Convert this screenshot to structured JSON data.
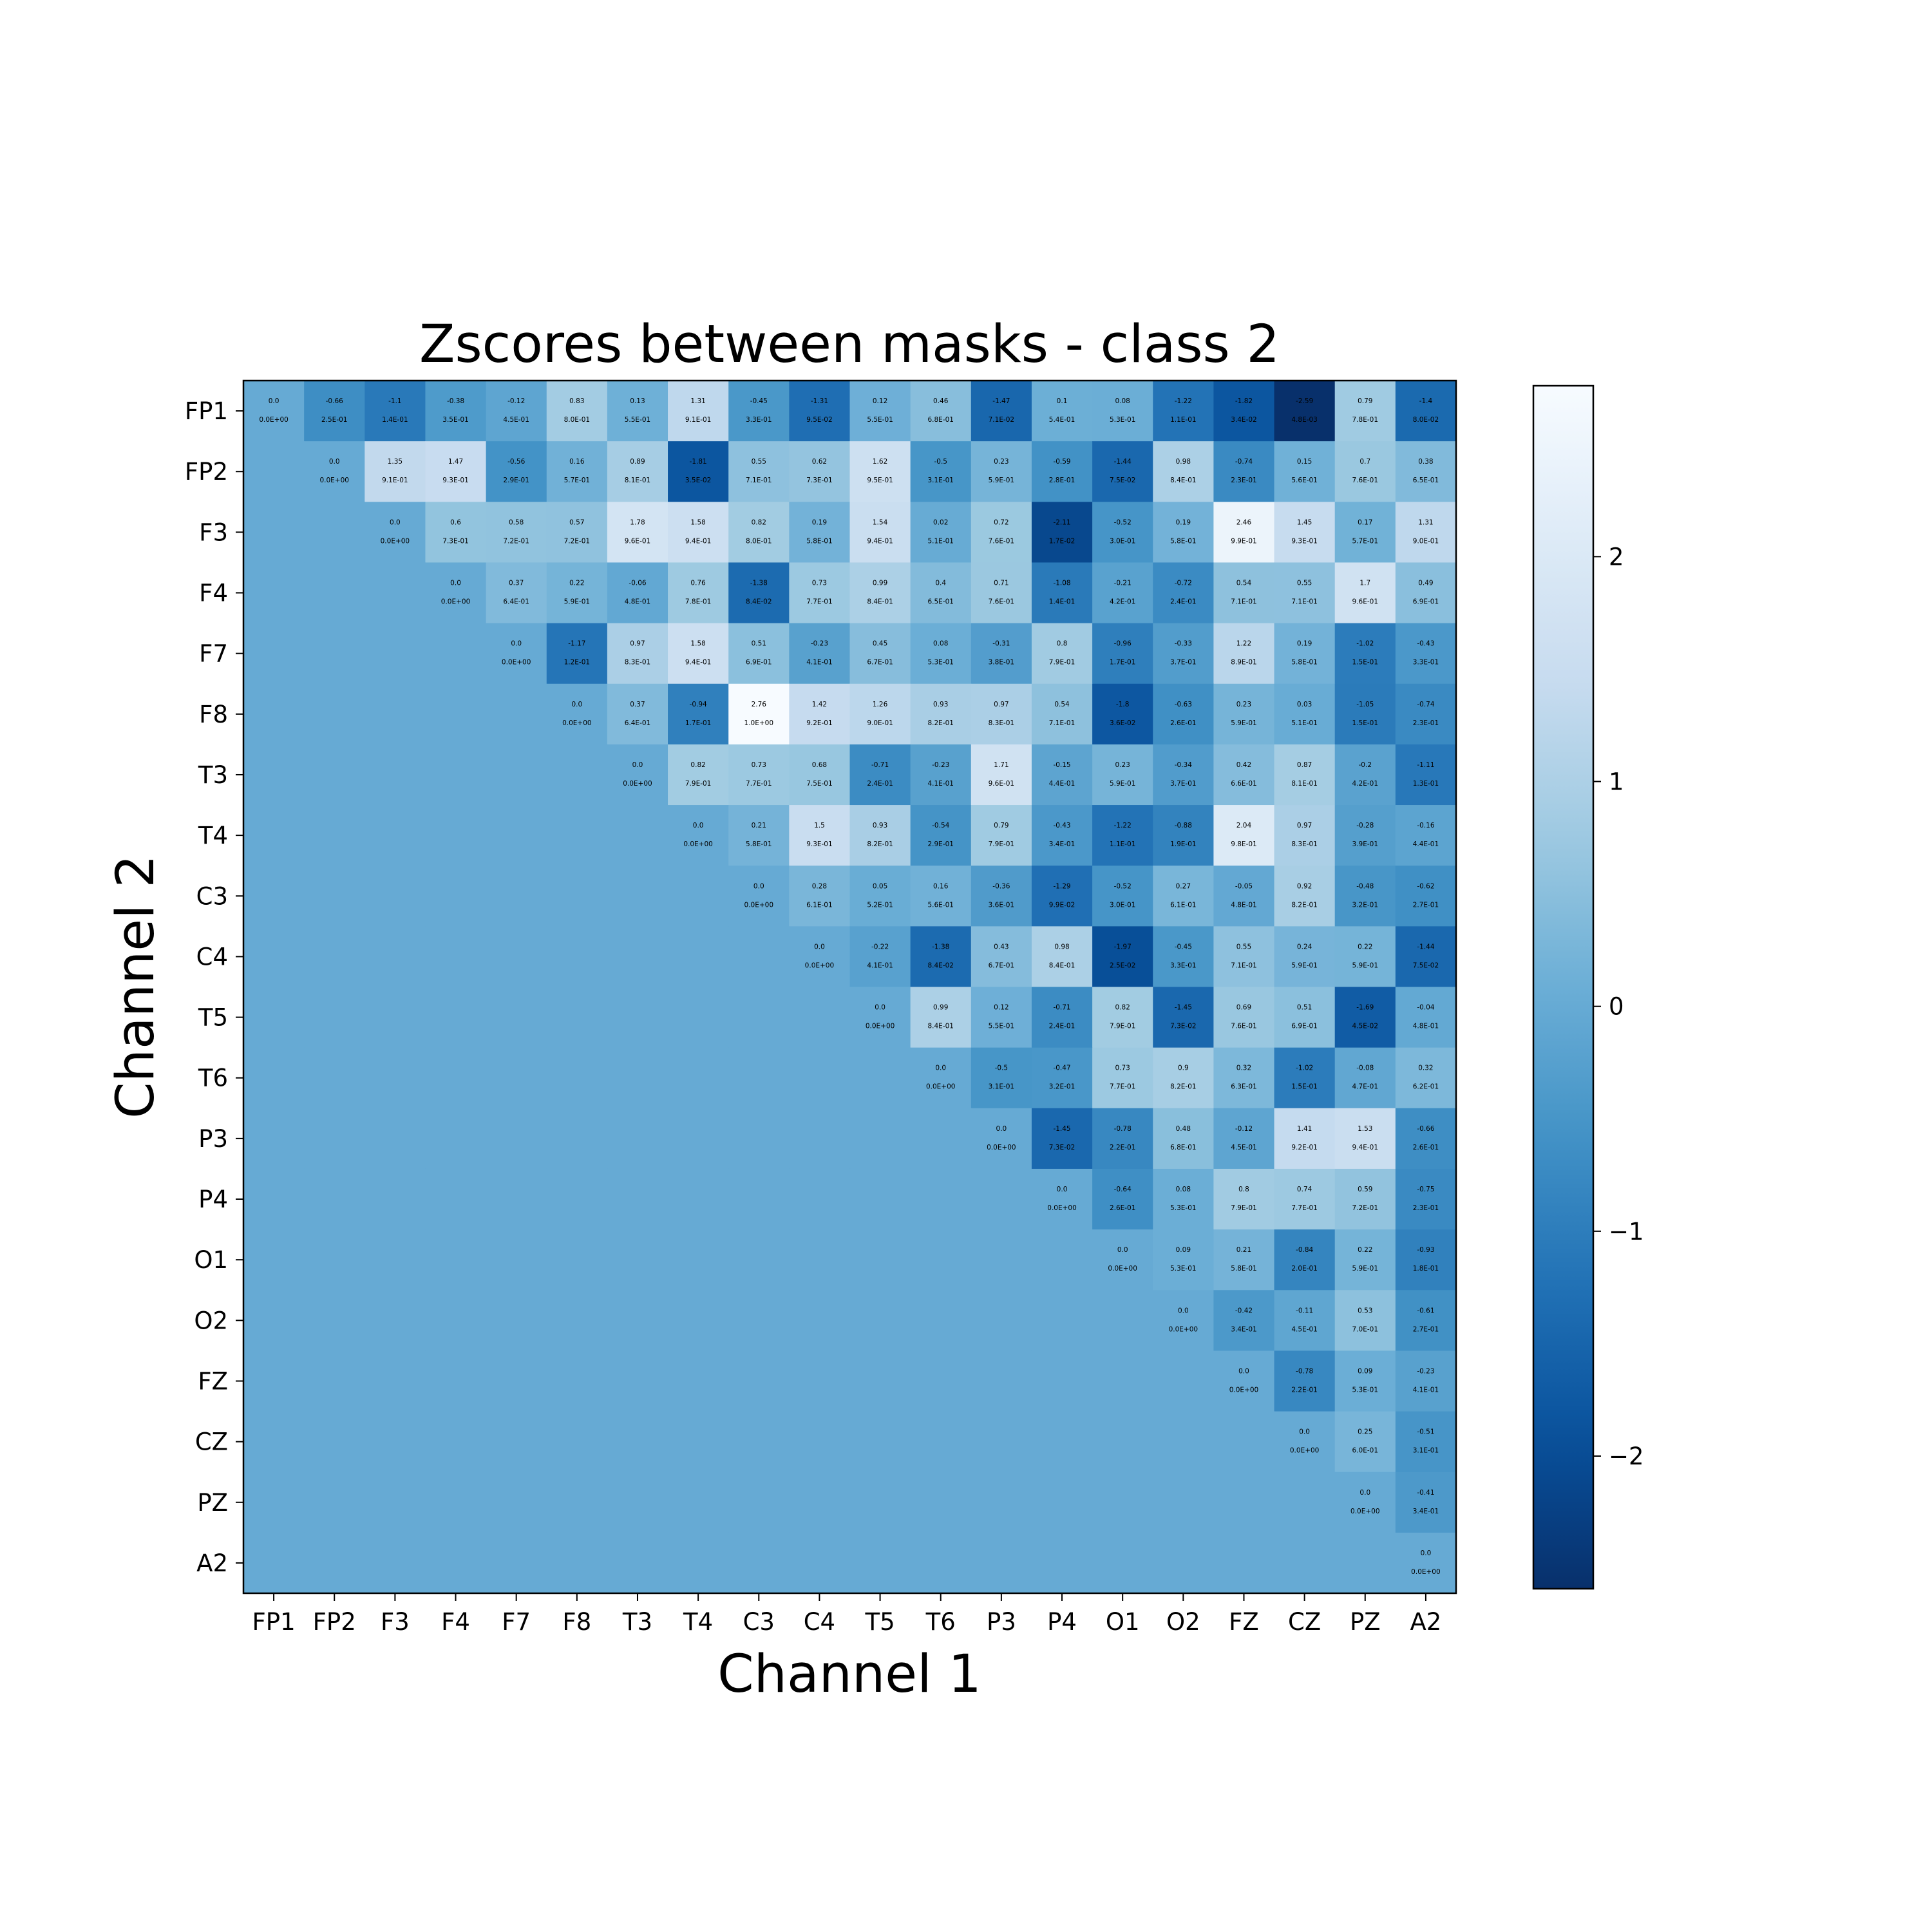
{
  "chart_data": {
    "type": "heatmap",
    "title": "Zscores between masks - class 2",
    "xlabel": "Channel 1",
    "ylabel": "Channel 2",
    "channels": [
      "FP1",
      "FP2",
      "F3",
      "F4",
      "F7",
      "F8",
      "T3",
      "T4",
      "C3",
      "C4",
      "T5",
      "T6",
      "P3",
      "P4",
      "O1",
      "O2",
      "FZ",
      "CZ",
      "PZ",
      "A2"
    ],
    "colormap": "Blues_r",
    "colorbar": {
      "vmin": -2.59,
      "vmax": 2.76,
      "ticks": [
        -2,
        -1,
        0,
        1,
        2
      ],
      "tick_labels": [
        "−2",
        "−1",
        "0",
        "1",
        "2"
      ]
    },
    "lower_triangle_value": 0.0,
    "rows": [
      {
        "z": [
          "0.0",
          "-0.66",
          "-1.1",
          "-0.38",
          "-0.12",
          "0.83",
          "0.13",
          "1.31",
          "-0.45",
          "-1.31",
          "0.12",
          "0.46",
          "-1.47",
          "0.1",
          "0.08",
          "-1.22",
          "-1.82",
          "-2.59",
          "0.79",
          "-1.4"
        ],
        "p": [
          "0.0E+00",
          "2.5E-01",
          "1.4E-01",
          "3.5E-01",
          "4.5E-01",
          "8.0E-01",
          "5.5E-01",
          "9.1E-01",
          "3.3E-01",
          "9.5E-02",
          "5.5E-01",
          "6.8E-01",
          "7.1E-02",
          "5.4E-01",
          "5.3E-01",
          "1.1E-01",
          "3.4E-02",
          "4.8E-03",
          "7.8E-01",
          "8.0E-02"
        ]
      },
      {
        "z": [
          "0.0",
          "1.35",
          "1.47",
          "-0.56",
          "0.16",
          "0.89",
          "-1.81",
          "0.55",
          "0.62",
          "1.62",
          "-0.5",
          "0.23",
          "-0.59",
          "-1.44",
          "0.98",
          "-0.74",
          "0.15",
          "0.7",
          "0.38"
        ],
        "p": [
          "0.0E+00",
          "9.1E-01",
          "9.3E-01",
          "2.9E-01",
          "5.7E-01",
          "8.1E-01",
          "3.5E-02",
          "7.1E-01",
          "7.3E-01",
          "9.5E-01",
          "3.1E-01",
          "5.9E-01",
          "2.8E-01",
          "7.5E-02",
          "8.4E-01",
          "2.3E-01",
          "5.6E-01",
          "7.6E-01",
          "6.5E-01"
        ]
      },
      {
        "z": [
          "0.0",
          "0.6",
          "0.58",
          "0.57",
          "1.78",
          "1.58",
          "0.82",
          "0.19",
          "1.54",
          "0.02",
          "0.72",
          "-2.11",
          "-0.52",
          "0.19",
          "2.46",
          "1.45",
          "0.17",
          "1.31"
        ],
        "p": [
          "0.0E+00",
          "7.3E-01",
          "7.2E-01",
          "7.2E-01",
          "9.6E-01",
          "9.4E-01",
          "8.0E-01",
          "5.8E-01",
          "9.4E-01",
          "5.1E-01",
          "7.6E-01",
          "1.7E-02",
          "3.0E-01",
          "5.8E-01",
          "9.9E-01",
          "9.3E-01",
          "5.7E-01",
          "9.0E-01"
        ]
      },
      {
        "z": [
          "0.0",
          "0.37",
          "0.22",
          "-0.06",
          "0.76",
          "-1.38",
          "0.73",
          "0.99",
          "0.4",
          "0.71",
          "-1.08",
          "-0.21",
          "-0.72",
          "0.54",
          "0.55",
          "1.7",
          "0.49"
        ],
        "p": [
          "0.0E+00",
          "6.4E-01",
          "5.9E-01",
          "4.8E-01",
          "7.8E-01",
          "8.4E-02",
          "7.7E-01",
          "8.4E-01",
          "6.5E-01",
          "7.6E-01",
          "1.4E-01",
          "4.2E-01",
          "2.4E-01",
          "7.1E-01",
          "7.1E-01",
          "9.6E-01",
          "6.9E-01"
        ]
      },
      {
        "z": [
          "0.0",
          "-1.17",
          "0.97",
          "1.58",
          "0.51",
          "-0.23",
          "0.45",
          "0.08",
          "-0.31",
          "0.8",
          "-0.96",
          "-0.33",
          "1.22",
          "0.19",
          "-1.02",
          "-0.43"
        ],
        "p": [
          "0.0E+00",
          "1.2E-01",
          "8.3E-01",
          "9.4E-01",
          "6.9E-01",
          "4.1E-01",
          "6.7E-01",
          "5.3E-01",
          "3.8E-01",
          "7.9E-01",
          "1.7E-01",
          "3.7E-01",
          "8.9E-01",
          "5.8E-01",
          "1.5E-01",
          "3.3E-01"
        ]
      },
      {
        "z": [
          "0.0",
          "0.37",
          "-0.94",
          "2.76",
          "1.42",
          "1.26",
          "0.93",
          "0.97",
          "0.54",
          "-1.8",
          "-0.63",
          "0.23",
          "0.03",
          "-1.05",
          "-0.74"
        ],
        "p": [
          "0.0E+00",
          "6.4E-01",
          "1.7E-01",
          "1.0E+00",
          "9.2E-01",
          "9.0E-01",
          "8.2E-01",
          "8.3E-01",
          "7.1E-01",
          "3.6E-02",
          "2.6E-01",
          "5.9E-01",
          "5.1E-01",
          "1.5E-01",
          "2.3E-01"
        ]
      },
      {
        "z": [
          "0.0",
          "0.82",
          "0.73",
          "0.68",
          "-0.71",
          "-0.23",
          "1.71",
          "-0.15",
          "0.23",
          "-0.34",
          "0.42",
          "0.87",
          "-0.2",
          "-1.11"
        ],
        "p": [
          "0.0E+00",
          "7.9E-01",
          "7.7E-01",
          "7.5E-01",
          "2.4E-01",
          "4.1E-01",
          "9.6E-01",
          "4.4E-01",
          "5.9E-01",
          "3.7E-01",
          "6.6E-01",
          "8.1E-01",
          "4.2E-01",
          "1.3E-01"
        ]
      },
      {
        "z": [
          "0.0",
          "0.21",
          "1.5",
          "0.93",
          "-0.54",
          "0.79",
          "-0.43",
          "-1.22",
          "-0.88",
          "2.04",
          "0.97",
          "-0.28",
          "-0.16"
        ],
        "p": [
          "0.0E+00",
          "5.8E-01",
          "9.3E-01",
          "8.2E-01",
          "2.9E-01",
          "7.9E-01",
          "3.4E-01",
          "1.1E-01",
          "1.9E-01",
          "9.8E-01",
          "8.3E-01",
          "3.9E-01",
          "4.4E-01"
        ]
      },
      {
        "z": [
          "0.0",
          "0.28",
          "0.05",
          "0.16",
          "-0.36",
          "-1.29",
          "-0.52",
          "0.27",
          "-0.05",
          "0.92",
          "-0.48",
          "-0.62"
        ],
        "p": [
          "0.0E+00",
          "6.1E-01",
          "5.2E-01",
          "5.6E-01",
          "3.6E-01",
          "9.9E-02",
          "3.0E-01",
          "6.1E-01",
          "4.8E-01",
          "8.2E-01",
          "3.2E-01",
          "2.7E-01"
        ]
      },
      {
        "z": [
          "0.0",
          "-0.22",
          "-1.38",
          "0.43",
          "0.98",
          "-1.97",
          "-0.45",
          "0.55",
          "0.24",
          "0.22",
          "-1.44"
        ],
        "p": [
          "0.0E+00",
          "4.1E-01",
          "8.4E-02",
          "6.7E-01",
          "8.4E-01",
          "2.5E-02",
          "3.3E-01",
          "7.1E-01",
          "5.9E-01",
          "5.9E-01",
          "7.5E-02"
        ]
      },
      {
        "z": [
          "0.0",
          "0.99",
          "0.12",
          "-0.71",
          "0.82",
          "-1.45",
          "0.69",
          "0.51",
          "-1.69",
          "-0.04"
        ],
        "p": [
          "0.0E+00",
          "8.4E-01",
          "5.5E-01",
          "2.4E-01",
          "7.9E-01",
          "7.3E-02",
          "7.6E-01",
          "6.9E-01",
          "4.5E-02",
          "4.8E-01"
        ]
      },
      {
        "z": [
          "0.0",
          "-0.5",
          "-0.47",
          "0.73",
          "0.9",
          "0.32",
          "-1.02",
          "-0.08",
          "0.32"
        ],
        "p": [
          "0.0E+00",
          "3.1E-01",
          "3.2E-01",
          "7.7E-01",
          "8.2E-01",
          "6.3E-01",
          "1.5E-01",
          "4.7E-01",
          "6.2E-01"
        ]
      },
      {
        "z": [
          "0.0",
          "-1.45",
          "-0.78",
          "0.48",
          "-0.12",
          "1.41",
          "1.53",
          "-0.66"
        ],
        "p": [
          "0.0E+00",
          "7.3E-02",
          "2.2E-01",
          "6.8E-01",
          "4.5E-01",
          "9.2E-01",
          "9.4E-01",
          "2.6E-01"
        ]
      },
      {
        "z": [
          "0.0",
          "-0.64",
          "0.08",
          "0.8",
          "0.74",
          "0.59",
          "-0.75"
        ],
        "p": [
          "0.0E+00",
          "2.6E-01",
          "5.3E-01",
          "7.9E-01",
          "7.7E-01",
          "7.2E-01",
          "2.3E-01"
        ]
      },
      {
        "z": [
          "0.0",
          "0.09",
          "0.21",
          "-0.84",
          "0.22",
          "-0.93"
        ],
        "p": [
          "0.0E+00",
          "5.3E-01",
          "5.8E-01",
          "2.0E-01",
          "5.9E-01",
          "1.8E-01"
        ]
      },
      {
        "z": [
          "0.0",
          "-0.42",
          "-0.11",
          "0.53",
          "-0.61"
        ],
        "p": [
          "0.0E+00",
          "3.4E-01",
          "4.5E-01",
          "7.0E-01",
          "2.7E-01"
        ]
      },
      {
        "z": [
          "0.0",
          "-0.78",
          "0.09",
          "-0.23"
        ],
        "p": [
          "0.0E+00",
          "2.2E-01",
          "5.3E-01",
          "4.1E-01"
        ]
      },
      {
        "z": [
          "0.0",
          "0.25",
          "-0.51"
        ],
        "p": [
          "0.0E+00",
          "6.0E-01",
          "3.1E-01"
        ]
      },
      {
        "z": [
          "0.0",
          "-0.41"
        ],
        "p": [
          "0.0E+00",
          "3.4E-01"
        ]
      },
      {
        "z": [
          "0.0"
        ],
        "p": [
          "0.0E+00"
        ]
      }
    ]
  }
}
